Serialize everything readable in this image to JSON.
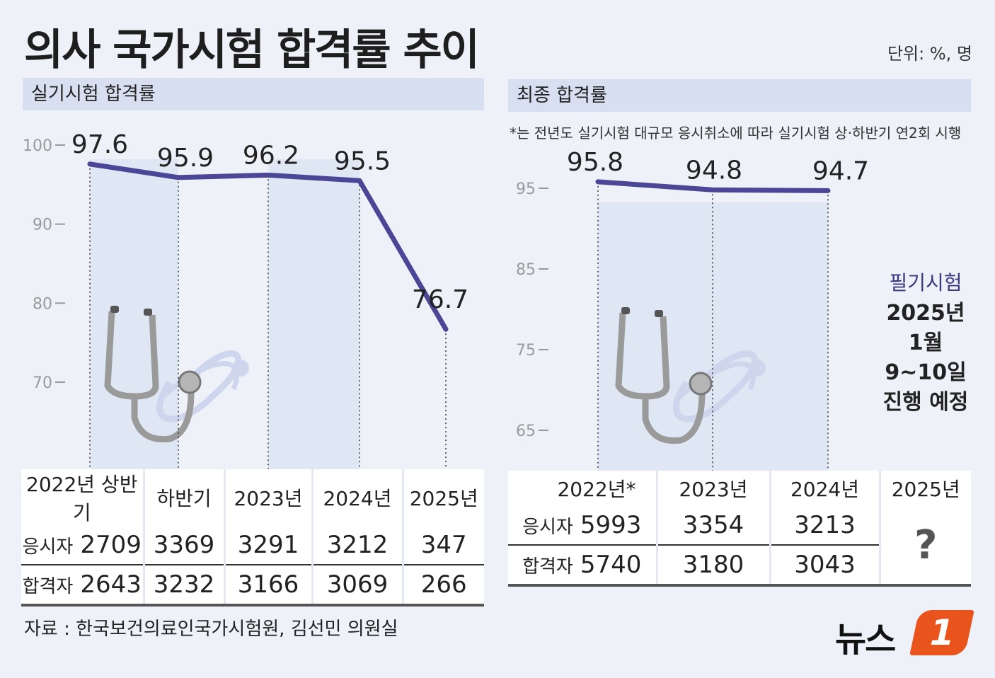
{
  "title": "의사 국가시험 합격률 추이",
  "unit": "단위: %, 명",
  "left_panel": {
    "heading": "실기시험 합격률",
    "columns": [
      "2022년 상반기",
      "하반기",
      "2023년",
      "2024년",
      "2025년"
    ],
    "applicants_label": "응시자",
    "applicants": [
      "2709",
      "3369",
      "3291",
      "3212",
      "347"
    ],
    "passers_label": "합격자",
    "passers": [
      "2643",
      "3232",
      "3166",
      "3069",
      "266"
    ]
  },
  "right_panel": {
    "heading": "최종 합격률",
    "note": "*는 전년도 실기시험 대규모 응시취소에 따라 실기시험 상·하반기 연2회 시행",
    "columns": [
      "2022년*",
      "2023년",
      "2024년",
      "2025년"
    ],
    "applicants_label": "응시자",
    "applicants": [
      "5993",
      "3354",
      "3213"
    ],
    "passers_label": "합격자",
    "passers": [
      "5740",
      "3180",
      "3043"
    ],
    "unknown_mark": "?",
    "exam_note": {
      "label": "필기시험",
      "line1": "2025년",
      "line2": "1월",
      "line3": "9~10일",
      "line4": "진행 예정"
    }
  },
  "source": "자료 : 한국보건의료인국가시험원, 김선민 의원실",
  "logo": {
    "text": "뉴스",
    "number": "1"
  },
  "colors": {
    "line": "#4b4796",
    "band": "#dfe6f4",
    "background": "#eef1f7",
    "logo": "#e9541d"
  },
  "chart_data": [
    {
      "type": "line",
      "title": "실기시험 합격률",
      "categories": [
        "2022년 상반기",
        "하반기",
        "2023년",
        "2024년",
        "2025년"
      ],
      "values": [
        97.6,
        95.9,
        96.2,
        95.5,
        76.7
      ],
      "yticks": [
        100,
        90,
        80,
        70
      ],
      "ylim": [
        70,
        100
      ]
    },
    {
      "type": "line",
      "title": "최종 합격률",
      "categories": [
        "2022년*",
        "2023년",
        "2024년"
      ],
      "values": [
        95.8,
        94.8,
        94.7
      ],
      "yticks": [
        95,
        85,
        75,
        65
      ],
      "ylim": [
        65,
        95
      ]
    }
  ]
}
